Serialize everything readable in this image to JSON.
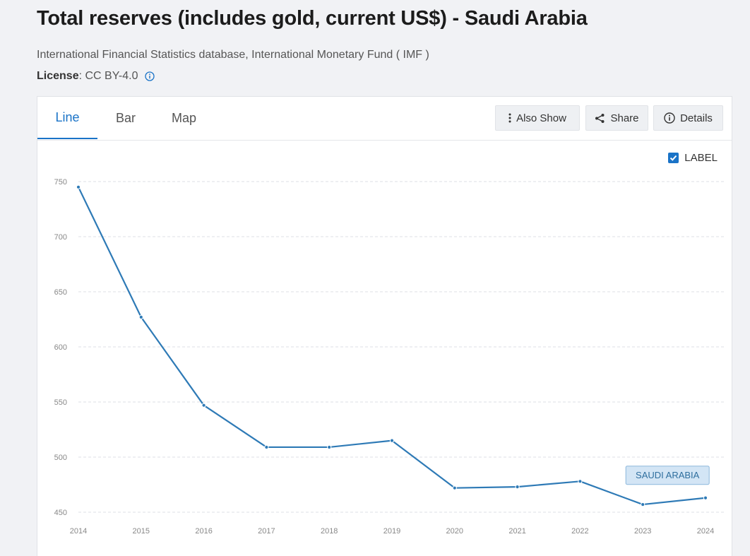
{
  "header": {
    "title": "Total reserves (includes gold, current US$) - Saudi Arabia",
    "source": "International Financial Statistics database, International Monetary Fund ( IMF )",
    "license_label": "License",
    "license_value": ": CC BY-4.0"
  },
  "tabs": [
    {
      "label": "Line",
      "active": true
    },
    {
      "label": "Bar",
      "active": false
    },
    {
      "label": "Map",
      "active": false
    }
  ],
  "toolbar": {
    "also_show": "Also Show",
    "share": "Share",
    "details": "Details"
  },
  "label_toggle": {
    "label": "LABEL",
    "checked": true
  },
  "colors": {
    "accent": "#1a73c7",
    "line": "#2e7ab6",
    "badge_bg": "#d3e5f5",
    "badge_border": "#8bb7dc"
  },
  "chart_data": {
    "type": "line",
    "x": [
      "2014",
      "2015",
      "2016",
      "2017",
      "2018",
      "2019",
      "2020",
      "2021",
      "2022",
      "2023",
      "2024"
    ],
    "series": [
      {
        "name": "SAUDI ARABIA",
        "values": [
          745,
          627,
          547,
          509,
          509,
          515,
          472,
          473,
          478,
          457,
          463
        ]
      }
    ],
    "yticks": [
      450,
      500,
      550,
      600,
      650,
      700,
      750
    ],
    "ylim": [
      450,
      750
    ],
    "grid": true,
    "title": "",
    "xlabel": "",
    "ylabel": ""
  }
}
